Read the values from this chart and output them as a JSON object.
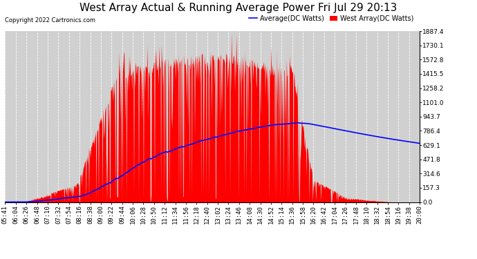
{
  "title": "West Array Actual & Running Average Power Fri Jul 29 20:13",
  "copyright": "Copyright 2022 Cartronics.com",
  "ylabel_right_ticks": [
    0.0,
    157.3,
    314.6,
    471.8,
    629.1,
    786.4,
    943.7,
    1101.0,
    1258.2,
    1415.5,
    1572.8,
    1730.1,
    1887.4
  ],
  "ymax": 1887.4,
  "legend_average_label": "Average(DC Watts)",
  "legend_west_label": "West Array(DC Watts)",
  "legend_average_color": "blue",
  "legend_west_color": "red",
  "fill_color": "red",
  "avg_line_color": "blue",
  "plot_bg_color": "#d0d0d0",
  "grid_color": "white",
  "title_fontsize": 11,
  "tick_label_fontsize": 6.5,
  "time_labels": [
    "05:41",
    "06:04",
    "06:26",
    "06:48",
    "07:10",
    "07:32",
    "07:54",
    "08:16",
    "08:38",
    "09:00",
    "09:22",
    "09:44",
    "10:06",
    "10:28",
    "10:50",
    "11:12",
    "11:34",
    "11:56",
    "12:18",
    "12:40",
    "13:02",
    "13:24",
    "13:46",
    "14:08",
    "14:30",
    "14:52",
    "15:14",
    "15:36",
    "15:58",
    "16:20",
    "16:42",
    "17:04",
    "17:26",
    "17:48",
    "18:10",
    "18:32",
    "18:54",
    "19:16",
    "19:38",
    "20:00"
  ]
}
